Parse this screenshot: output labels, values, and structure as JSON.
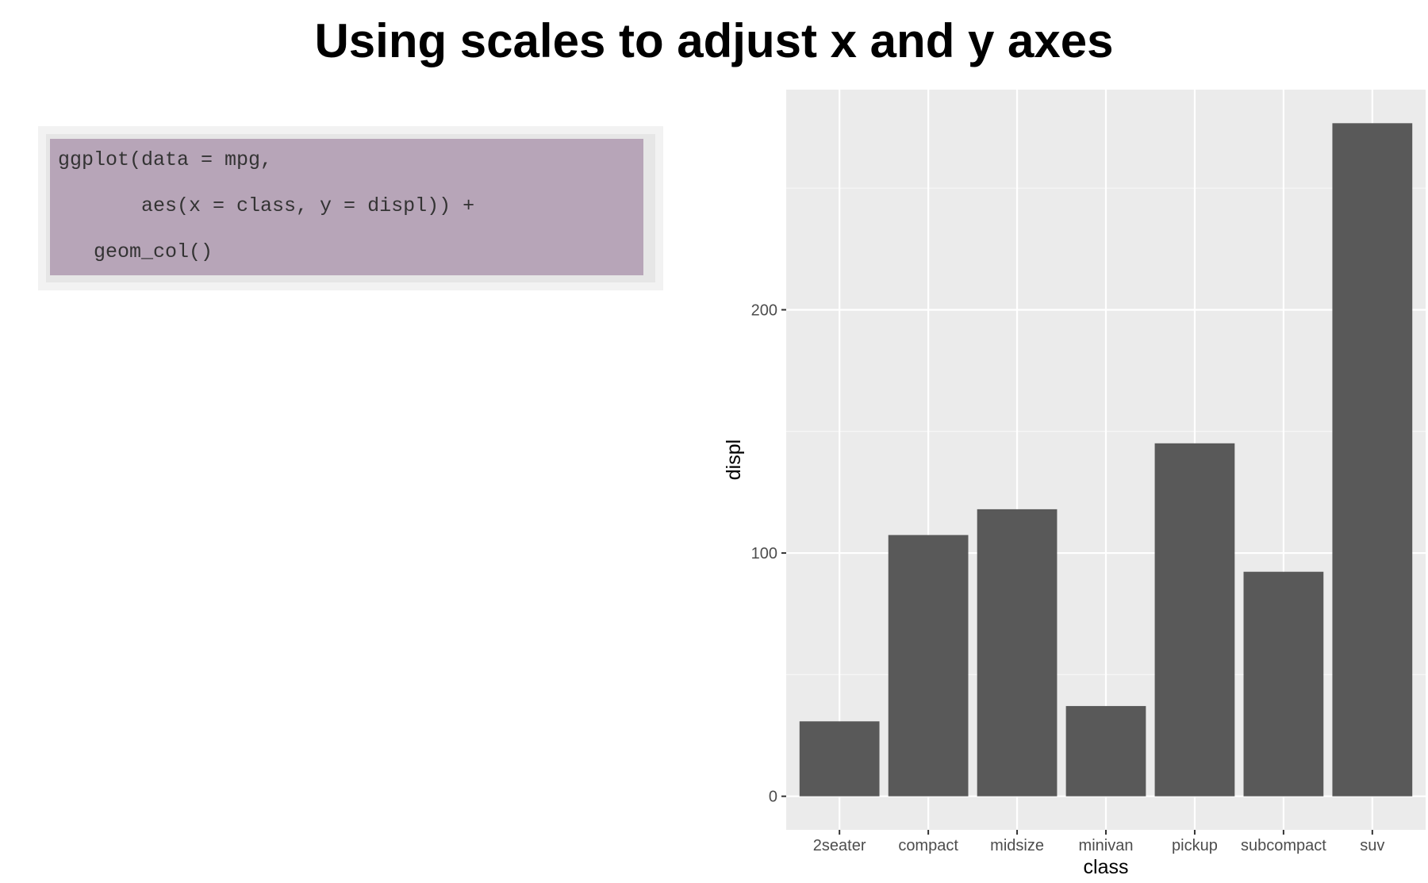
{
  "title": "Using scales to adjust x and y axes",
  "code": {
    "lines": [
      "ggplot(data = mpg,",
      "       aes(x = class, y = displ)) +",
      "   geom_col()"
    ]
  },
  "chart_data": {
    "type": "bar",
    "categories": [
      "2seater",
      "compact",
      "midsize",
      "minivan",
      "pickup",
      "subcompact",
      "suv"
    ],
    "values": [
      30.8,
      107.4,
      118.0,
      37.1,
      145.1,
      92.3,
      276.7
    ],
    "xlabel": "class",
    "ylabel": "displ",
    "ylim": [
      -13.8,
      290.5
    ],
    "yticks": [
      0,
      100,
      200
    ],
    "grid": true,
    "colors": {
      "panel": "#ebebeb",
      "grid_major": "#ffffff",
      "grid_minor": "#f7f7f7",
      "bar": "#595959",
      "tick": "#333333"
    }
  }
}
